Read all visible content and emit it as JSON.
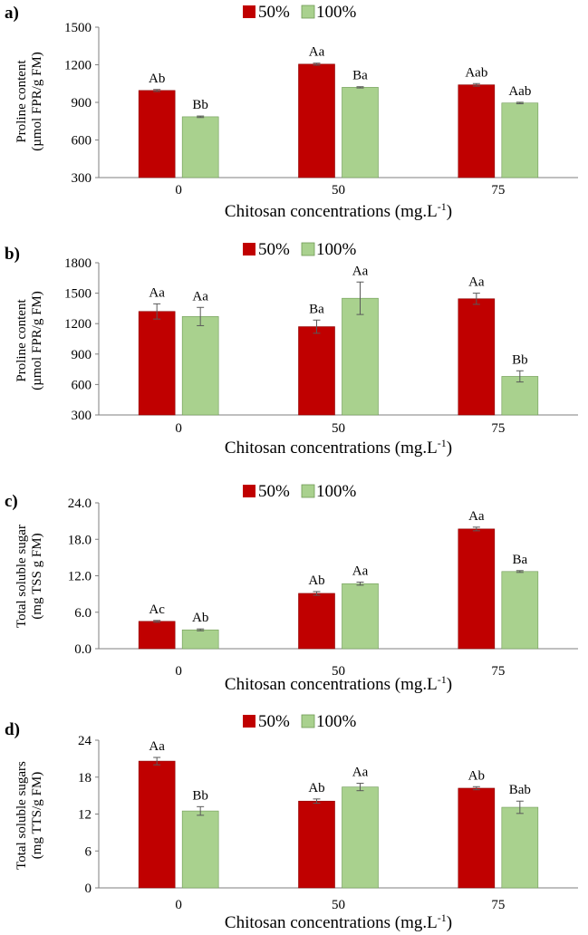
{
  "colors": {
    "series_50": "#c00000",
    "series_100": "#a9d18e",
    "axis": "#7f7f7f",
    "error_bar": "#595959"
  },
  "chart_data": [
    {
      "panel": "a)",
      "type": "bar",
      "categories": [
        "0",
        "50",
        "75"
      ],
      "series": [
        {
          "name": "50%",
          "values": [
            995,
            1205,
            1040
          ],
          "errors": [
            8,
            8,
            10
          ],
          "labels": [
            "Ab",
            "Aa",
            "Aab"
          ]
        },
        {
          "name": "100%",
          "values": [
            785,
            1020,
            895
          ],
          "errors": [
            6,
            5,
            6
          ],
          "labels": [
            "Bb",
            "Ba",
            "Aab"
          ]
        }
      ],
      "xlabel": "Chitosan concentrations (mg.L",
      "xlabel_sup": "-1",
      "xlabel_end": ")",
      "ylabel": [
        "Proline content",
        "(µmol FPR/g FM)"
      ],
      "ylim": [
        300,
        1500
      ],
      "yticks": [
        "300",
        "600",
        "900",
        "1200",
        "1500"
      ],
      "legend_position": "top"
    },
    {
      "panel": "b)",
      "type": "bar",
      "categories": [
        "0",
        "50",
        "75"
      ],
      "series": [
        {
          "name": "50%",
          "values": [
            1320,
            1170,
            1445
          ],
          "errors": [
            75,
            65,
            55
          ],
          "labels": [
            "Aa",
            "Ba",
            "Aa"
          ]
        },
        {
          "name": "100%",
          "values": [
            1270,
            1450,
            680
          ],
          "errors": [
            90,
            160,
            55
          ],
          "labels": [
            "Aa",
            "Aa",
            "Bb"
          ]
        }
      ],
      "xlabel": "Chitosan concentrations (mg.L",
      "xlabel_sup": "-1",
      "xlabel_end": ")",
      "ylabel": [
        "Proline content",
        "(µmol FPR/g FM)"
      ],
      "ylim": [
        300,
        1800
      ],
      "yticks": [
        "300",
        "600",
        "900",
        "1200",
        "1500",
        "1800"
      ],
      "legend_position": "top"
    },
    {
      "panel": "c)",
      "type": "bar",
      "categories": [
        "0",
        "50",
        "75"
      ],
      "series": [
        {
          "name": "50%",
          "values": [
            4.5,
            9.1,
            19.7
          ],
          "errors": [
            0.15,
            0.3,
            0.3
          ],
          "labels": [
            "Ac",
            "Ab",
            "Aa"
          ]
        },
        {
          "name": "100%",
          "values": [
            3.1,
            10.7,
            12.7
          ],
          "errors": [
            0.15,
            0.25,
            0.15
          ],
          "labels": [
            "Ab",
            "Aa",
            "Ba"
          ]
        }
      ],
      "xlabel": "Chitosan concentrations (mg.L",
      "xlabel_sup": "-1",
      "xlabel_end": ")",
      "ylabel": [
        "Total soluble sugar",
        "(mg TSS g FM)"
      ],
      "ylim": [
        0,
        24
      ],
      "yticks": [
        "0.0",
        "6.0",
        "12.0",
        "18.0",
        "24.0"
      ],
      "legend_position": "top"
    },
    {
      "panel": "d)",
      "type": "bar",
      "categories": [
        "0",
        "50",
        "75"
      ],
      "series": [
        {
          "name": "50%",
          "values": [
            20.6,
            14.1,
            16.2
          ],
          "errors": [
            0.6,
            0.35,
            0.25
          ],
          "labels": [
            "Aa",
            "Ab",
            "Ab"
          ]
        },
        {
          "name": "100%",
          "values": [
            12.5,
            16.4,
            13.1
          ],
          "errors": [
            0.7,
            0.6,
            1.0
          ],
          "labels": [
            "Bb",
            "Aa",
            "Bab"
          ]
        }
      ],
      "xlabel": "Chitosan concentrations (mg.L",
      "xlabel_sup": "-1",
      "xlabel_end": ")",
      "ylabel": [
        "Total soluble sugars",
        "(mg TTS/g FM)"
      ],
      "ylim": [
        0,
        24
      ],
      "yticks": [
        "0",
        "6",
        "12",
        "18",
        "24"
      ],
      "legend_position": "top"
    }
  ]
}
